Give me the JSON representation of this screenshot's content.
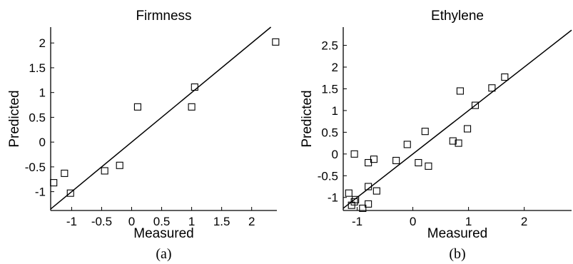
{
  "chart_data": [
    {
      "type": "scatter",
      "title": "Firmness",
      "xlabel": "Measured",
      "ylabel": "Predicted",
      "panel_label": "(a)",
      "xlim": [
        -1.35,
        2.42
      ],
      "ylim": [
        -1.38,
        2.32
      ],
      "xticks": [
        -1,
        -0.5,
        0,
        0.5,
        1,
        1.5,
        2
      ],
      "xtick_labels": [
        "-1",
        "-0.5",
        "0",
        "0.5",
        "1",
        "1.5",
        "2"
      ],
      "yticks": [
        -1,
        -0.5,
        0,
        0.5,
        1,
        1.5,
        2
      ],
      "ytick_labels": [
        "-1",
        "-0.5",
        "0",
        "0.5",
        "1",
        "1.5",
        "2"
      ],
      "marker": "square",
      "reference_line": "y = x",
      "grid": false,
      "points": [
        {
          "x": -1.3,
          "y": -0.82
        },
        {
          "x": -1.12,
          "y": -0.63
        },
        {
          "x": -1.02,
          "y": -1.03
        },
        {
          "x": -0.45,
          "y": -0.58
        },
        {
          "x": -0.2,
          "y": -0.47
        },
        {
          "x": 0.1,
          "y": 0.71
        },
        {
          "x": 1.0,
          "y": 0.71
        },
        {
          "x": 1.05,
          "y": 1.11
        },
        {
          "x": 2.4,
          "y": 2.02
        }
      ]
    },
    {
      "type": "scatter",
      "title": "Ethylene",
      "xlabel": "Measured",
      "ylabel": "Predicted",
      "panel_label": "(b)",
      "xlim": [
        -1.25,
        2.85
      ],
      "ylim": [
        -1.3,
        2.92
      ],
      "xticks": [
        -1,
        0,
        1,
        2
      ],
      "xtick_labels": [
        "-1",
        "0",
        "1",
        "2"
      ],
      "yticks": [
        -1,
        -0.5,
        0,
        0.5,
        1,
        1.5,
        2,
        2.5
      ],
      "ytick_labels": [
        "-1",
        "-0.5",
        "0",
        "0.5",
        "1",
        "1.5",
        "2",
        "2.5"
      ],
      "marker": "square",
      "reference_line": "y = x",
      "grid": false,
      "points": [
        {
          "x": -1.15,
          "y": -0.9
        },
        {
          "x": -1.1,
          "y": -1.18
        },
        {
          "x": -1.05,
          "y": -1.1
        },
        {
          "x": -1.03,
          "y": -1.05
        },
        {
          "x": -1.05,
          "y": 0.0
        },
        {
          "x": -0.9,
          "y": -1.25
        },
        {
          "x": -0.8,
          "y": -1.15
        },
        {
          "x": -0.8,
          "y": -0.75
        },
        {
          "x": -0.8,
          "y": -0.2
        },
        {
          "x": -0.7,
          "y": -0.12
        },
        {
          "x": -0.65,
          "y": -0.85
        },
        {
          "x": -0.3,
          "y": -0.15
        },
        {
          "x": -0.1,
          "y": 0.22
        },
        {
          "x": 0.1,
          "y": -0.2
        },
        {
          "x": 0.22,
          "y": 0.52
        },
        {
          "x": 0.28,
          "y": -0.28
        },
        {
          "x": 0.72,
          "y": 0.3
        },
        {
          "x": 0.82,
          "y": 0.25
        },
        {
          "x": 0.85,
          "y": 1.45
        },
        {
          "x": 0.98,
          "y": 0.58
        },
        {
          "x": 1.12,
          "y": 1.12
        },
        {
          "x": 1.42,
          "y": 1.52
        },
        {
          "x": 1.65,
          "y": 1.77
        }
      ]
    }
  ]
}
